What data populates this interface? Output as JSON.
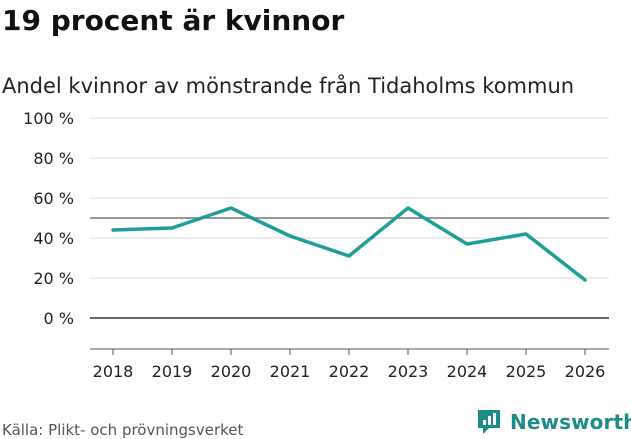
{
  "header": {
    "title": "19 procent är kvinnor",
    "subtitle": "Andel kvinnor av mönstrande från Tidaholms kommun"
  },
  "footer": {
    "source": "Källa: Plikt- och prövningsverket",
    "brand": "Newsworthy"
  },
  "colors": {
    "line": "#1f9e96",
    "reference_line": "#777777",
    "zero_line": "#333333",
    "grid": "#dddddd",
    "brand": "#1d8c88"
  },
  "chart_data": {
    "type": "line",
    "title": "19 procent är kvinnor",
    "subtitle": "Andel kvinnor av mönstrande från Tidaholms kommun",
    "x": [
      "2018",
      "2019",
      "2020",
      "2021",
      "2022",
      "2023",
      "2024",
      "2025",
      "2026"
    ],
    "series": [
      {
        "name": "Andel kvinnor",
        "values": [
          44,
          45,
          55,
          41,
          31,
          55,
          37,
          42,
          19
        ]
      }
    ],
    "reference_line": 50,
    "ylim": [
      -15,
      100
    ],
    "yticks": [
      100,
      80,
      60,
      40,
      20,
      0
    ],
    "ytick_labels": [
      "100 %",
      "80 %",
      "60 %",
      "40 %",
      "20 %",
      "0 %"
    ],
    "xlabel": "",
    "ylabel": "",
    "grid": true,
    "legend": "none"
  }
}
